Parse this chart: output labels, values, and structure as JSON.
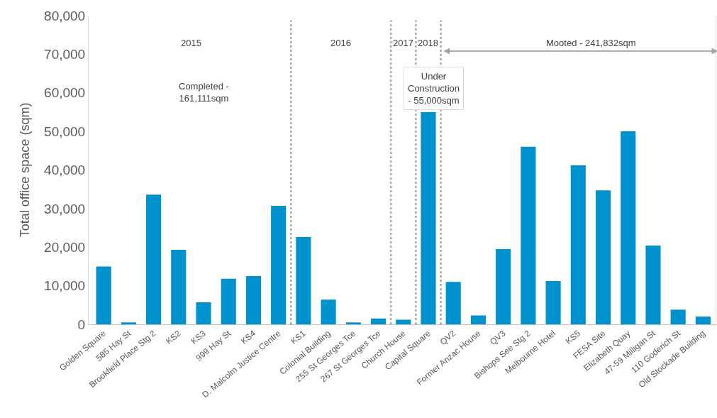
{
  "chart_data": {
    "type": "bar",
    "ylabel": "Total office space (sqm)",
    "categories": [
      "Golden Square",
      "585 Hay St",
      "Brookfield Place Stg 2",
      "KS2",
      "KS3",
      "999 Hay St",
      "KS4",
      "D. Malcolm Justice Centre",
      "KS1",
      "Colonial Building",
      "255 St Georges Tce",
      "267 St Georges Tce",
      "Church House",
      "Capital Square",
      "QV2",
      "Former Anzac House",
      "QV3",
      "Bishops See Stg 2",
      "Melbourne Hotel",
      "KS5",
      "FESA Site",
      "Elizabeth Quay",
      "47-59 Milligan St",
      "110 Goderich St",
      "Old Stockade Building"
    ],
    "values": [
      15000,
      500,
      33600,
      19300,
      5700,
      11800,
      12500,
      30700,
      22600,
      6400,
      500,
      1500,
      1200,
      55000,
      11000,
      2300,
      19500,
      46000,
      11200,
      41200,
      34700,
      50000,
      20400,
      3800,
      2000
    ],
    "color": "#0091cf",
    "ylim": [
      0,
      80000
    ],
    "yticks": [
      {
        "value": 0,
        "label": "0"
      },
      {
        "value": 10000,
        "label": "10,000"
      },
      {
        "value": 20000,
        "label": "20,000"
      },
      {
        "value": 30000,
        "label": "30,000"
      },
      {
        "value": 40000,
        "label": "40,000"
      },
      {
        "value": 50000,
        "label": "50,000"
      },
      {
        "value": 60000,
        "label": "60,000"
      },
      {
        "value": 70000,
        "label": "70,000"
      },
      {
        "value": 80000,
        "label": "80,000"
      }
    ],
    "annotations": [
      "2015",
      "2016",
      "2017",
      "2018",
      "Completed - 161,111sqm",
      "Under Construction - 55,000sqm",
      "Mooted - 241,832sqm"
    ]
  }
}
